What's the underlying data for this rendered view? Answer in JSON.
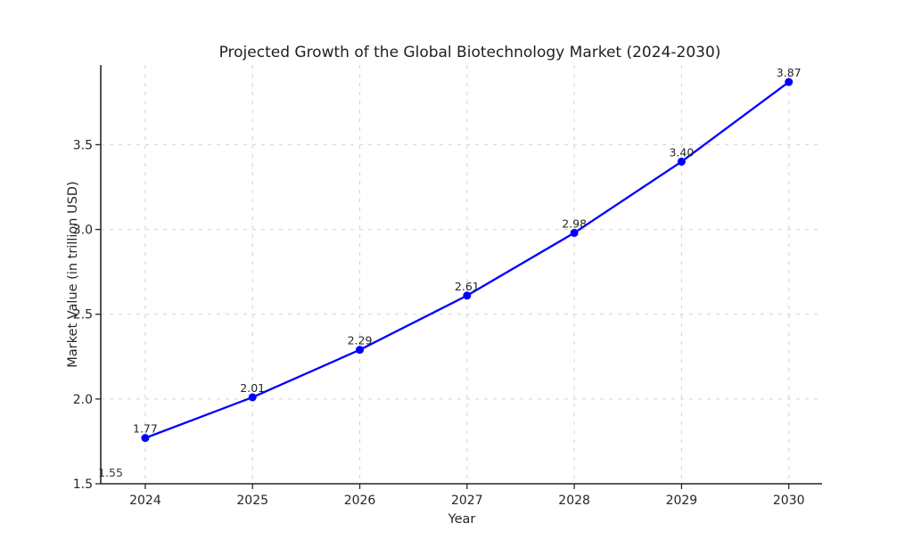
{
  "chart_data": {
    "type": "line",
    "title": "Projected Growth of the Global Biotechnology Market (2024-2030)",
    "xlabel": "Year",
    "ylabel": "Market Value (in trillion USD)",
    "x": [
      2024,
      2025,
      2026,
      2027,
      2028,
      2029,
      2030
    ],
    "values": [
      1.77,
      2.01,
      2.29,
      2.61,
      2.98,
      3.4,
      3.87
    ],
    "point_labels": [
      "1.77",
      "2.01",
      "2.29",
      "2.61",
      "2.98",
      "3.40",
      "3.87"
    ],
    "corner_annotation": "1.55",
    "xtick_labels": [
      "2024",
      "2025",
      "2026",
      "2027",
      "2028",
      "2029",
      "2030"
    ],
    "yticks": [
      1.5,
      2.0,
      2.5,
      3.0,
      3.5
    ],
    "ytick_labels": [
      "1.5",
      "2.0",
      "2.5",
      "3.0",
      "3.5"
    ],
    "xlim": [
      2023.585,
      2030.31
    ],
    "ylim": [
      1.5,
      3.97
    ],
    "grid": true,
    "legend": "none",
    "line_color": "#0000ff",
    "marker": "circle",
    "grid_color": "#d2d2d2",
    "axis_color": "#262626",
    "point_label_color": "#3d3d3d"
  }
}
